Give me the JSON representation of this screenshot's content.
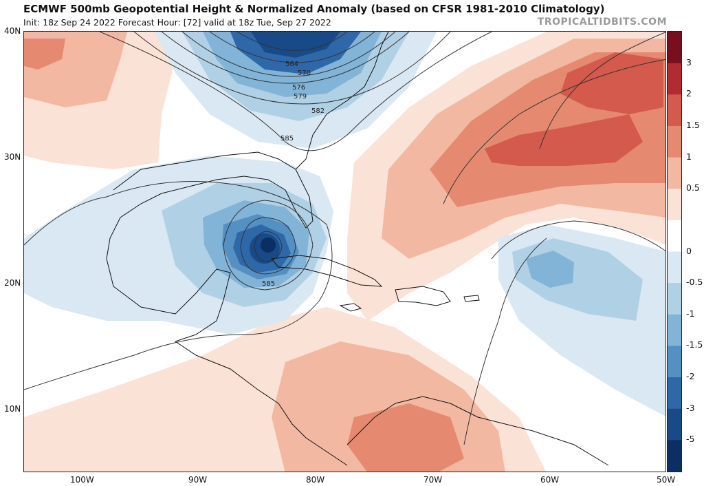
{
  "header": {
    "title": "ECMWF 500mb Geopotential Height & Normalized Anomaly (based on CFSR 1981-2010 Climatology)",
    "subtitle": "Init: 18z Sep 24 2022   Forecast Hour: [72]   valid at 18z Tue, Sep 27 2022",
    "brand": "TROPICALTIDBITS.COM"
  },
  "axes": {
    "lat_labels": [
      "40N",
      "30N",
      "20N",
      "10N"
    ],
    "lon_labels": [
      "100W",
      "90W",
      "80W",
      "70W",
      "60W",
      "50W"
    ]
  },
  "contours": {
    "labels": [
      "564",
      "570",
      "576",
      "579",
      "582",
      "585",
      "585"
    ]
  },
  "colorbar": {
    "labels": [
      "3",
      "2",
      "1.5",
      "1",
      "0.5",
      "0",
      "-0.5",
      "-1",
      "-1.5",
      "-2",
      "-3",
      "-5"
    ],
    "colors": [
      "#7a0e1e",
      "#b22a32",
      "#d35a4c",
      "#e58a70",
      "#f2b8a2",
      "#fbe2d6",
      "#ffffff",
      "#d9e8f2",
      "#b0d0e6",
      "#82b4d8",
      "#5590c3",
      "#2f68a8",
      "#174a87",
      "#0b2e63"
    ]
  },
  "colors": {
    "ocean": "#ffffff",
    "warm_light": "#fbe2d6",
    "warm_mid": "#f2b8a2",
    "warm_strong": "#e58a70",
    "warm_core": "#d35a4c",
    "cool_light": "#d9e8f2",
    "cool_mid": "#b0d0e6",
    "cool_strong": "#82b4d8",
    "cool_deep": "#2f68a8",
    "cool_core": "#0b2e63"
  }
}
